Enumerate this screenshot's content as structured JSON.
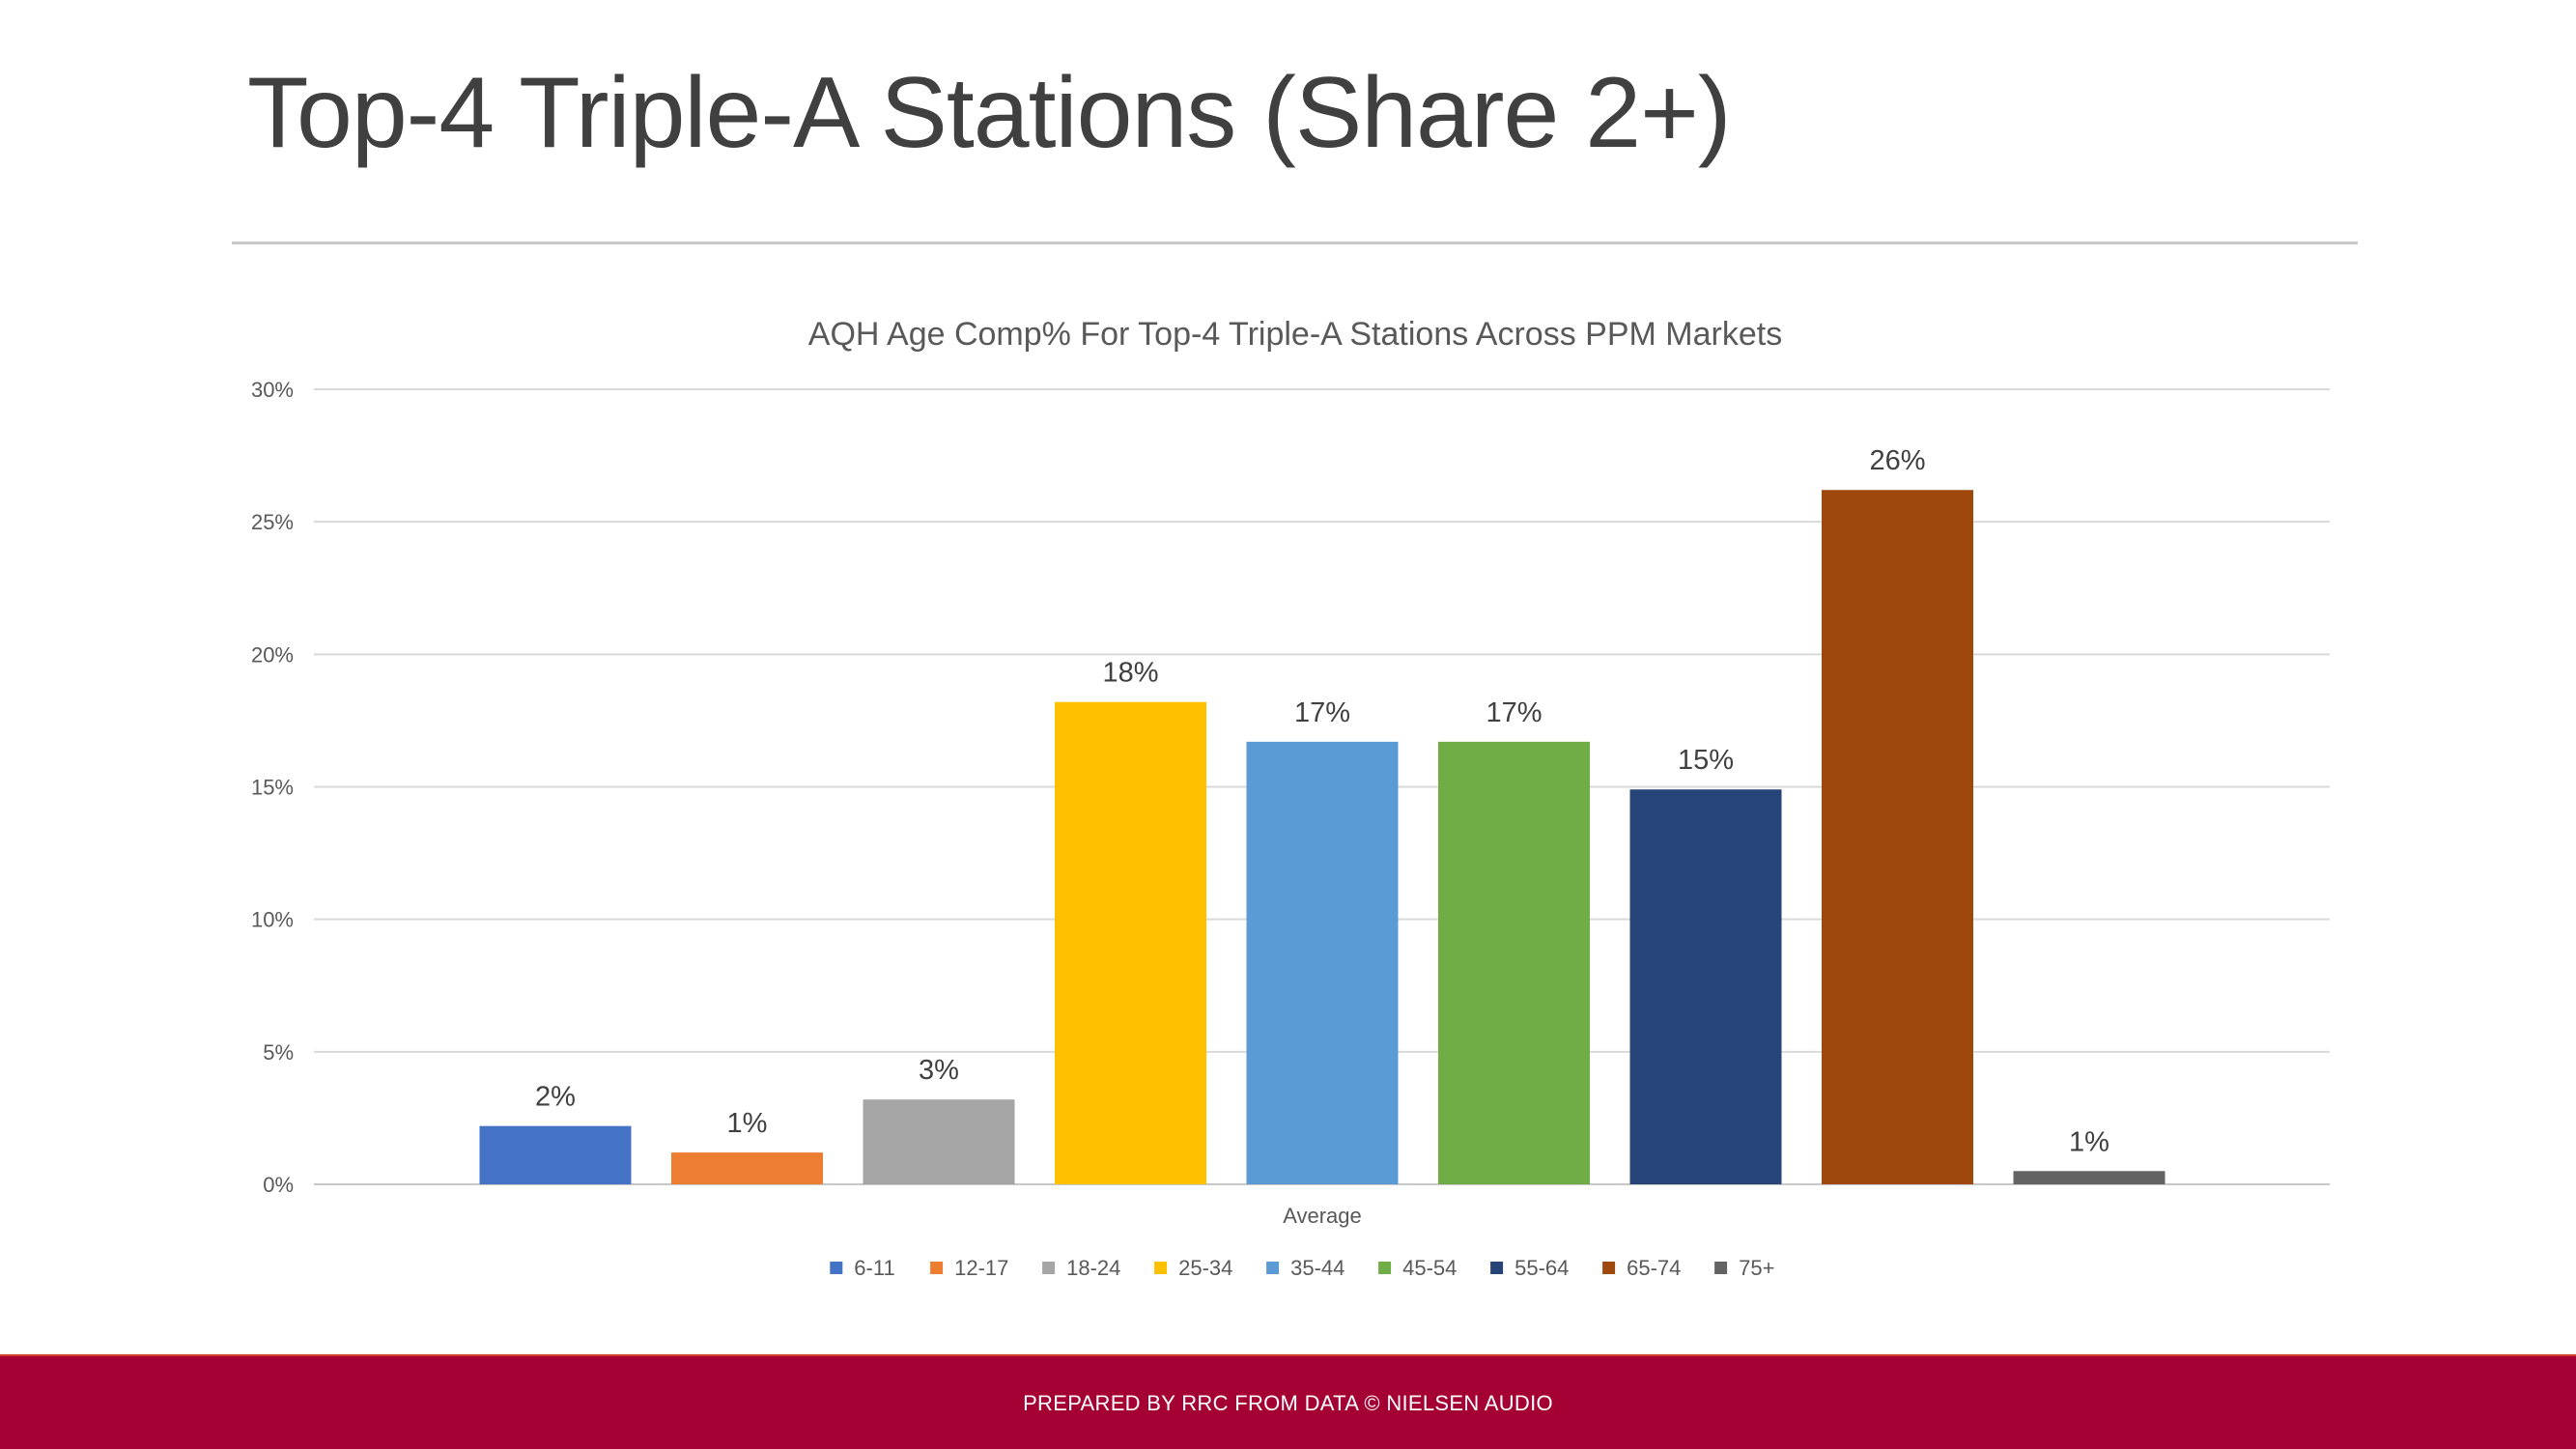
{
  "slide": {
    "title": "Top-4 Triple-A Stations (Share 2+)",
    "footer_text": "PREPARED BY RRC FROM DATA © NIELSEN AUDIO"
  },
  "colors": {
    "footer_bg": "#a50034",
    "title_text": "#404040",
    "gridline": "#d9d9d9"
  },
  "chart_data": {
    "type": "bar",
    "title": "AQH Age Comp% For Top-4 Triple-A Stations Across PPM Markets",
    "xlabel": "",
    "ylabel": "",
    "categories": [
      "Average"
    ],
    "ylim": [
      0,
      30
    ],
    "yticks": [
      0,
      5,
      10,
      15,
      20,
      25,
      30
    ],
    "ytick_labels": [
      "0%",
      "5%",
      "10%",
      "15%",
      "20%",
      "25%",
      "30%"
    ],
    "grid": true,
    "legend_position": "bottom",
    "series": [
      {
        "name": "6-11",
        "values": [
          2.2
        ],
        "label": "2%",
        "color": "#4472c4"
      },
      {
        "name": "12-17",
        "values": [
          1.2
        ],
        "label": "1%",
        "color": "#ed7d31"
      },
      {
        "name": "18-24",
        "values": [
          3.2
        ],
        "label": "3%",
        "color": "#a5a5a5"
      },
      {
        "name": "25-34",
        "values": [
          18.2
        ],
        "label": "18%",
        "color": "#ffc000"
      },
      {
        "name": "35-44",
        "values": [
          16.7
        ],
        "label": "17%",
        "color": "#5b9bd5"
      },
      {
        "name": "45-54",
        "values": [
          16.7
        ],
        "label": "17%",
        "color": "#70ad47"
      },
      {
        "name": "55-64",
        "values": [
          14.9
        ],
        "label": "15%",
        "color": "#264478"
      },
      {
        "name": "65-74",
        "values": [
          26.2
        ],
        "label": "26%",
        "color": "#9e480e"
      },
      {
        "name": "75+",
        "values": [
          0.5
        ],
        "label": "1%",
        "color": "#636363"
      }
    ]
  }
}
